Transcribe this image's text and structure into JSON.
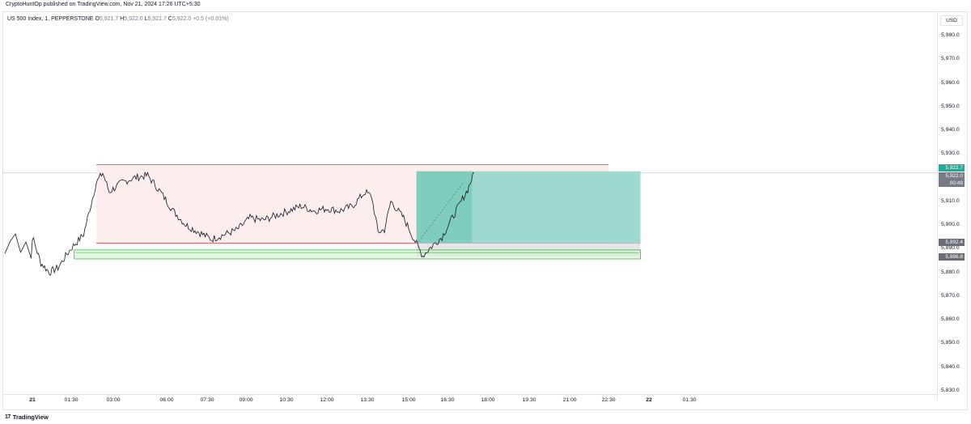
{
  "publication": {
    "line": "CryptoHuntOp published on TradingView.com, Nov 21, 2024 17:26 UTC+5:30"
  },
  "legend": {
    "symbol": "US 500 Index, 1, PEPPERSTONE",
    "o_label": "O",
    "o_value": "5,921.7",
    "h_label": "H",
    "h_value": "5,922.0",
    "l_label": "L",
    "l_value": "5,921.7",
    "c_label": "C",
    "c_value": "5,922.0",
    "change": "+0.5 (+0.01%)"
  },
  "currency_button": "USD",
  "price_axis": {
    "ticks": [
      "5,980.0",
      "5,970.0",
      "5,960.0",
      "5,950.0",
      "5,940.0",
      "5,930.0",
      "5,910.0",
      "5,900.0",
      "5,890.0",
      "5,880.0",
      "5,870.0",
      "5,860.0",
      "5,850.0",
      "5,840.0",
      "5,830.0"
    ],
    "tags": {
      "target": "5,922.7",
      "last": "5,922.0",
      "countdown": "00:49",
      "entry": "5,892.4",
      "stop": "5,886.8"
    }
  },
  "time_axis": {
    "ticks": [
      "21",
      "01:30",
      "03:00",
      "06:00",
      "07:30",
      "09:00",
      "10:30",
      "12:00",
      "13:30",
      "15:00",
      "16:30",
      "18:00",
      "19:30",
      "21:00",
      "22:30",
      "22",
      "01:30"
    ]
  },
  "brand": {
    "logo": "17",
    "name": "TradingView"
  },
  "colors": {
    "range_line": "#f23645",
    "range_fill": "#fdeeee",
    "target_zone": "#9fd8cf",
    "target_zone_active": "#7fcdbd",
    "stop_zone": "#e6e6e6",
    "support_zone_fill": "#d3f0d1",
    "support_zone_border": "#4caf50",
    "target_tag": "#22ab94",
    "last_tag": "#787b86",
    "neutral_tag": "#6a6d78",
    "price_line": "#131722"
  },
  "chart_data": {
    "type": "line",
    "series": [
      {
        "x": [
          "00:00",
          "00:20",
          "00:40",
          "01:00",
          "01:30",
          "02:00",
          "02:30",
          "02:45",
          "03:00",
          "03:30",
          "04:00",
          "04:30",
          "05:00",
          "05:30",
          "06:00",
          "06:30",
          "07:00",
          "07:30",
          "08:00",
          "08:30",
          "09:00",
          "09:30",
          "10:00",
          "10:30",
          "11:00",
          "11:30",
          "12:00",
          "12:30",
          "13:00",
          "13:15",
          "13:30",
          "13:45",
          "14:00",
          "14:30",
          "15:00",
          "15:15",
          "15:30",
          "16:00",
          "16:30",
          "17:00",
          "17:15"
        ],
        "values": [
          5895,
          5884,
          5880,
          5882,
          5890,
          5896,
          5918,
          5922,
          5914,
          5918,
          5920,
          5921,
          5914,
          5906,
          5900,
          5897,
          5894,
          5896,
          5898,
          5903,
          5902,
          5904,
          5906,
          5908,
          5906,
          5907,
          5906,
          5908,
          5914,
          5912,
          5897,
          5898,
          5910,
          5903,
          5892,
          5887,
          5890,
          5895,
          5905,
          5915,
          5922
        ]
      }
    ],
    "ylim": [
      5827,
      5990
    ],
    "range_box": {
      "high": 5925.5,
      "low": 5892.4,
      "start": "02:30",
      "end": "22:30"
    },
    "long_position": {
      "entry": 5892.4,
      "target": 5922.7,
      "stop": 5886.8,
      "start": "15:00",
      "end": "23:45"
    },
    "support_zone": {
      "high": 5889.5,
      "low": 5885.7,
      "start": "01:00",
      "end": "23:45"
    }
  }
}
